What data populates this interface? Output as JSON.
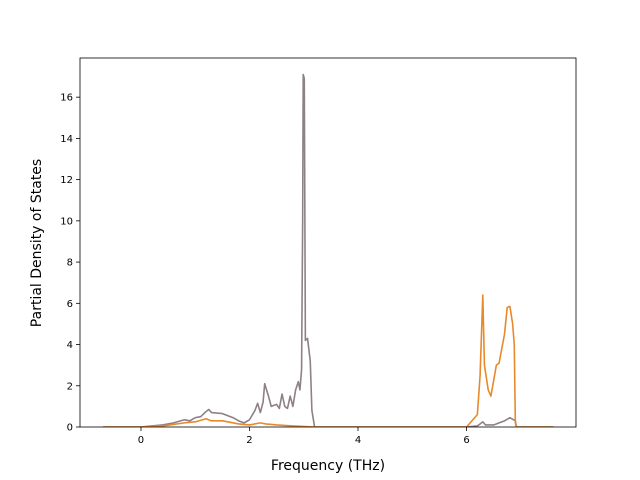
{
  "chart_data": {
    "type": "line",
    "xlabel": "Frequency (THz)",
    "ylabel": "Partial Density of States",
    "xlim": [
      -1.124,
      8.018
    ],
    "ylim": [
      0,
      17.9
    ],
    "xticks": [
      0,
      2,
      4,
      6
    ],
    "yticks": [
      0,
      2,
      4,
      6,
      8,
      10,
      12,
      14,
      16
    ],
    "series": [
      {
        "color": "#8f7f87",
        "x": [
          -0.7,
          0,
          0.2,
          0.4,
          0.6,
          0.8,
          0.9,
          1.0,
          1.1,
          1.2,
          1.25,
          1.3,
          1.5,
          1.7,
          1.8,
          1.9,
          2.0,
          2.1,
          2.15,
          2.2,
          2.25,
          2.28,
          2.35,
          2.4,
          2.5,
          2.55,
          2.6,
          2.65,
          2.7,
          2.75,
          2.8,
          2.85,
          2.9,
          2.93,
          2.96,
          2.98,
          2.99,
          3.01,
          3.03,
          3.07,
          3.12,
          3.15,
          3.2,
          6.0,
          6.2,
          6.3,
          6.35,
          6.5,
          6.6,
          6.7,
          6.8,
          6.9,
          6.92,
          7.6
        ],
        "values": [
          0,
          0,
          0.05,
          0.1,
          0.2,
          0.35,
          0.3,
          0.45,
          0.5,
          0.75,
          0.85,
          0.7,
          0.65,
          0.45,
          0.3,
          0.2,
          0.35,
          0.8,
          1.15,
          0.7,
          1.2,
          2.1,
          1.5,
          1.0,
          1.1,
          0.9,
          1.6,
          1.0,
          0.9,
          1.5,
          1.0,
          1.8,
          2.2,
          1.8,
          2.8,
          10,
          17.1,
          16.9,
          4.2,
          4.3,
          3.2,
          0.8,
          0,
          0,
          0.05,
          0.25,
          0.1,
          0.1,
          0.2,
          0.3,
          0.45,
          0.3,
          0,
          0
        ]
      },
      {
        "color": "#e8892c",
        "x": [
          -0.7,
          0,
          0.4,
          0.8,
          1.0,
          1.2,
          1.3,
          1.5,
          1.8,
          2.0,
          2.2,
          2.3,
          2.5,
          2.8,
          3.2,
          6.0,
          6.2,
          6.25,
          6.3,
          6.33,
          6.4,
          6.45,
          6.55,
          6.6,
          6.7,
          6.75,
          6.8,
          6.85,
          6.88,
          6.9,
          6.92,
          7.6
        ],
        "values": [
          0,
          0,
          0.05,
          0.2,
          0.25,
          0.4,
          0.3,
          0.3,
          0.15,
          0.1,
          0.2,
          0.15,
          0.1,
          0.05,
          0,
          0,
          0.6,
          2.5,
          6.4,
          3,
          1.8,
          1.5,
          3.0,
          3.1,
          4.5,
          5.8,
          5.85,
          5.0,
          4.0,
          0.2,
          0,
          0
        ]
      }
    ]
  }
}
